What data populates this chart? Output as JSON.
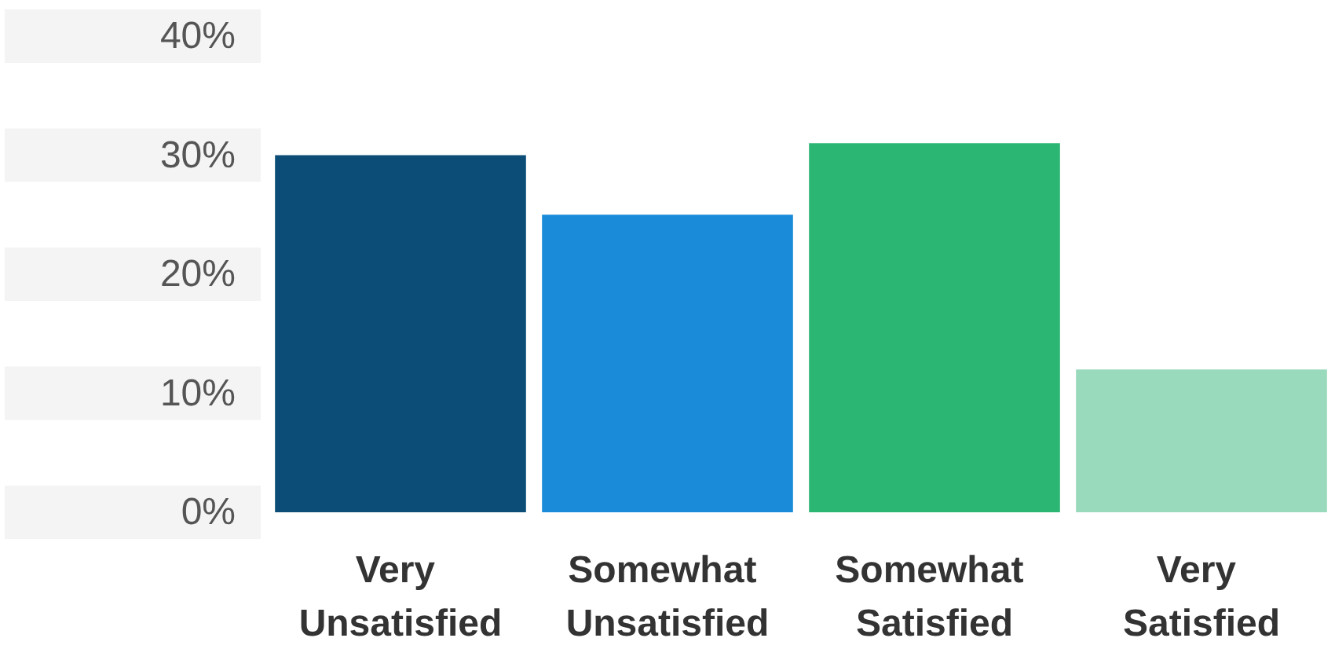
{
  "chart_data": {
    "type": "bar",
    "categories": [
      "Very Unsatisfied",
      "Somewhat Unsatisfied",
      "Somewhat Satisfied",
      "Very Satisfied"
    ],
    "values": [
      30,
      25,
      31,
      12
    ],
    "colors": [
      "#0b4d76",
      "#198bd9",
      "#2cb673",
      "#98dabb"
    ],
    "ylim": [
      0,
      40
    ],
    "yticks": [
      {
        "value": 0,
        "label": "0%"
      },
      {
        "value": 10,
        "label": "10%"
      },
      {
        "value": 20,
        "label": "20%"
      },
      {
        "value": 30,
        "label": "30%"
      },
      {
        "value": 40,
        "label": "40%"
      }
    ]
  }
}
